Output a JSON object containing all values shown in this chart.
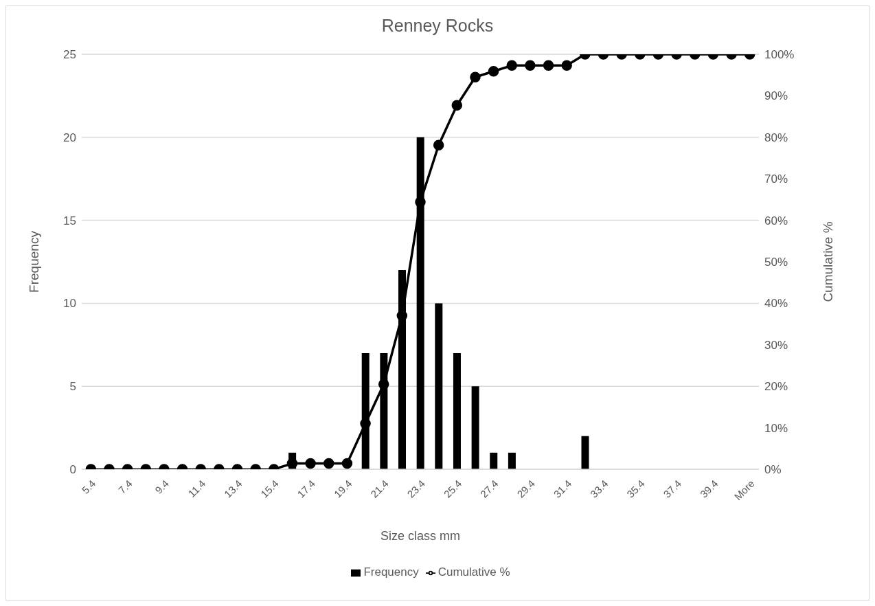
{
  "chart_data": {
    "type": "bar",
    "title": "Renney Rocks",
    "xlabel": "Size class mm",
    "ylabel": "Frequency",
    "y2label": "Cumulative %",
    "categories": [
      "5.4",
      null,
      "7.4",
      null,
      "9.4",
      null,
      "11.4",
      null,
      "13.4",
      null,
      "15.4",
      null,
      "17.4",
      null,
      "19.4",
      null,
      "21.4",
      null,
      "23.4",
      null,
      "25.4",
      null,
      "27.4",
      null,
      "29.4",
      null,
      "31.4",
      null,
      "33.4",
      null,
      "35.4",
      null,
      "37.4",
      null,
      "39.4",
      null,
      "More"
    ],
    "series": [
      {
        "name": "Frequency",
        "color": "#000000",
        "values": [
          0,
          0,
          0,
          0,
          0,
          0,
          0,
          0,
          0,
          0,
          0,
          1,
          0,
          0,
          0,
          7,
          7,
          12,
          20,
          10,
          7,
          5,
          1,
          1,
          0,
          0,
          0,
          2,
          0,
          0,
          0,
          0,
          0,
          0,
          0,
          0,
          0
        ]
      },
      {
        "name": "Cumulative %",
        "type": "line",
        "axis": "y2",
        "color": "#000000",
        "values": [
          0,
          0,
          0,
          0,
          0,
          0,
          0,
          0,
          0,
          0,
          0,
          1.4,
          1.4,
          1.4,
          1.4,
          11,
          20.5,
          37,
          64.4,
          78.1,
          87.7,
          94.5,
          95.9,
          97.3,
          97.3,
          97.3,
          97.3,
          100,
          100,
          100,
          100,
          100,
          100,
          100,
          100,
          100,
          100
        ]
      }
    ],
    "ylim": [
      0,
      25
    ],
    "yticks": [
      0,
      5,
      10,
      15,
      20,
      25
    ],
    "y2lim": [
      0,
      100
    ],
    "y2ticks": [
      {
        "value": 0,
        "label": "0%"
      },
      {
        "value": 10,
        "label": "10%"
      },
      {
        "value": 20,
        "label": "20%"
      },
      {
        "value": 30,
        "label": "30%"
      },
      {
        "value": 40,
        "label": "40%"
      },
      {
        "value": 50,
        "label": "50%"
      },
      {
        "value": 60,
        "label": "60%"
      },
      {
        "value": 70,
        "label": "70%"
      },
      {
        "value": 80,
        "label": "80%"
      },
      {
        "value": 90,
        "label": "90%"
      },
      {
        "value": 100,
        "label": "100%"
      }
    ],
    "grid": "y",
    "legend": "bottom",
    "marker": "circle"
  }
}
